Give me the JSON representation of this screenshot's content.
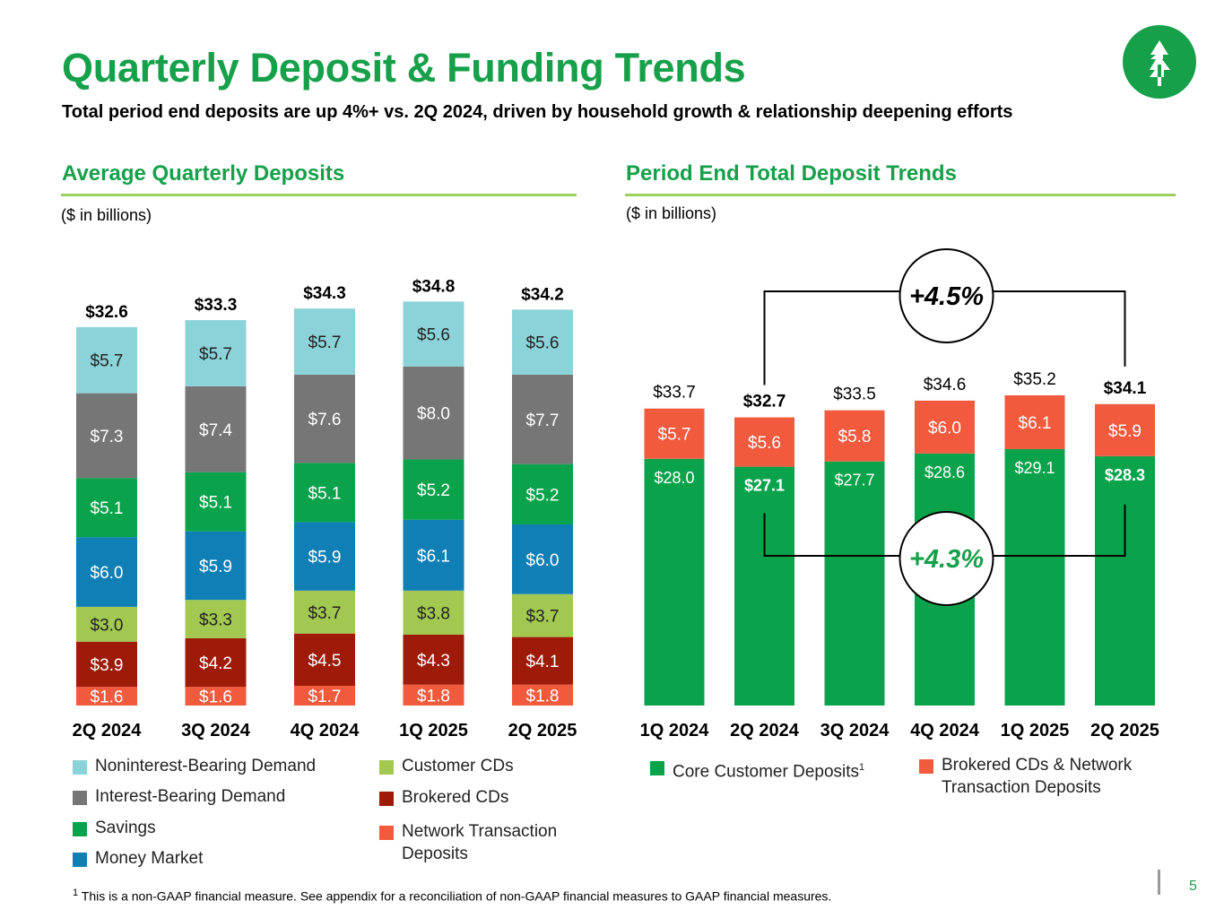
{
  "title": "Quarterly Deposit & Funding Trends",
  "subtitle": "Total period end deposits are up 4%+ vs. 2Q 2024, driven by household growth & relationship deepening efforts",
  "brand_color": "#16a04a",
  "left_section": {
    "title": "Average Quarterly Deposits",
    "unit_note": "($ in billions)"
  },
  "right_section": {
    "title": "Period End Total Deposit Trends",
    "unit_note": "($ in billions)"
  },
  "legend_left": [
    {
      "label": "Noninterest-Bearing Demand",
      "color": "#8cd3d9"
    },
    {
      "label": "Interest-Bearing Demand",
      "color": "#767676"
    },
    {
      "label": "Savings",
      "color": "#0aa24b"
    },
    {
      "label": "Money Market",
      "color": "#0f7fb6"
    },
    {
      "label": "Customer CDs",
      "color": "#a2c851"
    },
    {
      "label": "Brokered CDs",
      "color": "#9d1b08"
    },
    {
      "label": "Network Transaction",
      "label_line2": "Deposits",
      "color": "#f25a3e"
    }
  ],
  "legend_right": [
    {
      "label": "Core Customer Deposits",
      "superscript": "1",
      "color": "#0aa24b"
    },
    {
      "label": "Brokered CDs & Network",
      "label_line2": "Transaction Deposits",
      "color": "#f25a3e"
    }
  ],
  "footnote": {
    "marker": "1",
    "text": " This is a non-GAAP financial measure. See appendix for a reconciliation of non-GAAP financial measures to GAAP financial measures."
  },
  "page_number": "5",
  "chart_data": [
    {
      "type": "bar",
      "stacked": true,
      "title": "Average Quarterly Deposits",
      "unit": "$ in billions",
      "categories": [
        "2Q 2024",
        "3Q 2024",
        "4Q 2024",
        "1Q 2025",
        "2Q 2025"
      ],
      "series": [
        {
          "name": "Network Transaction Deposits",
          "color": "#f25a3e",
          "values": [
            1.6,
            1.6,
            1.7,
            1.8,
            1.8
          ],
          "labels": [
            "$1.6",
            "$1.6",
            "$1.7",
            "$1.8",
            "$1.8"
          ]
        },
        {
          "name": "Brokered CDs",
          "color": "#9d1b08",
          "values": [
            3.9,
            4.2,
            4.5,
            4.3,
            4.1
          ],
          "labels": [
            "$3.9",
            "$4.2",
            "$4.5",
            "$4.3",
            "$4.1"
          ]
        },
        {
          "name": "Customer CDs",
          "color": "#a2c851",
          "values": [
            3.0,
            3.3,
            3.7,
            3.8,
            3.7
          ],
          "labels": [
            "$3.0",
            "$3.3",
            "$3.7",
            "$3.8",
            "$3.7"
          ]
        },
        {
          "name": "Money Market",
          "color": "#0f7fb6",
          "values": [
            6.0,
            5.9,
            5.9,
            6.1,
            6.0
          ],
          "labels": [
            "$6.0",
            "$5.9",
            "$5.9",
            "$6.1",
            "$6.0"
          ]
        },
        {
          "name": "Savings",
          "color": "#0aa24b",
          "values": [
            5.1,
            5.1,
            5.1,
            5.2,
            5.2
          ],
          "labels": [
            "$5.1",
            "$5.1",
            "$5.1",
            "$5.2",
            "$5.2"
          ]
        },
        {
          "name": "Interest-Bearing Demand",
          "color": "#767676",
          "values": [
            7.3,
            7.4,
            7.6,
            8.0,
            7.7
          ],
          "labels": [
            "$7.3",
            "$7.4",
            "$7.6",
            "$8.0",
            "$7.7"
          ]
        },
        {
          "name": "Noninterest-Bearing Demand",
          "color": "#8cd3d9",
          "values": [
            5.7,
            5.7,
            5.7,
            5.6,
            5.6
          ],
          "labels": [
            "$5.7",
            "$5.7",
            "$5.7",
            "$5.6",
            "$5.6"
          ]
        }
      ],
      "totals": [
        32.6,
        33.3,
        34.3,
        34.8,
        34.2
      ],
      "total_labels": [
        "$32.6",
        "$33.3",
        "$34.3",
        "$34.8",
        "$34.2"
      ],
      "ylim": [
        0,
        38
      ]
    },
    {
      "type": "bar",
      "stacked": true,
      "title": "Period End Total Deposit Trends",
      "unit": "$ in billions",
      "categories": [
        "1Q 2024",
        "2Q 2024",
        "3Q 2024",
        "4Q 2024",
        "1Q 2025",
        "2Q 2025"
      ],
      "series": [
        {
          "name": "Core Customer Deposits",
          "color": "#0aa24b",
          "values": [
            28.0,
            27.1,
            27.7,
            28.6,
            29.1,
            28.3
          ],
          "labels": [
            "$28.0",
            "$27.1",
            "$27.7",
            "$28.6",
            "$29.1",
            "$28.3"
          ]
        },
        {
          "name": "Brokered CDs & Network Transaction Deposits",
          "color": "#f25a3e",
          "values": [
            5.7,
            5.6,
            5.8,
            6.0,
            6.1,
            5.9
          ],
          "labels": [
            "$5.7",
            "$5.6",
            "$5.8",
            "$6.0",
            "$6.1",
            "$5.9"
          ]
        }
      ],
      "totals": [
        33.7,
        32.7,
        33.5,
        34.6,
        35.2,
        34.1
      ],
      "total_labels": [
        "$33.7",
        "$32.7",
        "$33.5",
        "$34.6",
        "$35.2",
        "$34.1"
      ],
      "emphasized_categories": [
        "2Q 2024",
        "2Q 2025"
      ],
      "ylim": [
        0,
        35.2
      ],
      "annotations": [
        {
          "text": "+4.5%",
          "description": "Total deposits growth",
          "from": "2Q 2024",
          "to": "2Q 2025",
          "series": "total"
        },
        {
          "text": "+4.3%",
          "description": "Core customer deposits growth",
          "from": "2Q 2024",
          "to": "2Q 2025",
          "series": "Core Customer Deposits"
        }
      ]
    }
  ]
}
